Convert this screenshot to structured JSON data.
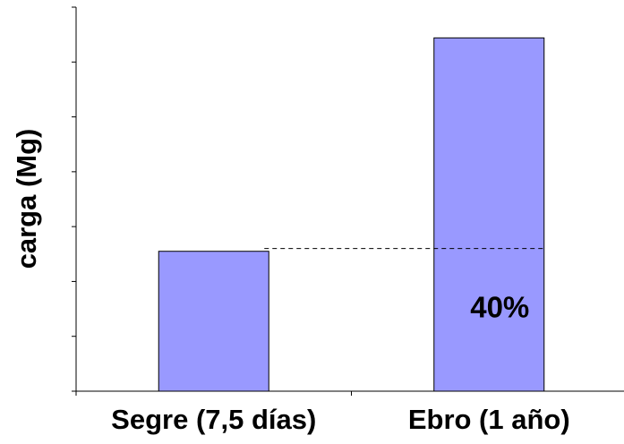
{
  "chart_data": {
    "type": "bar",
    "y_label": "carga (Mg)",
    "categories": [
      "Segre (7,5 días)",
      "Ebro (1 año)"
    ],
    "values": [
      2.55,
      6.44
    ],
    "color": "#9999ff",
    "ylim": [
      0,
      7
    ],
    "yticks": [
      0,
      1,
      2,
      3,
      4,
      5,
      6,
      7
    ],
    "reference_line": {
      "value": 2.6,
      "label": "40%"
    }
  }
}
